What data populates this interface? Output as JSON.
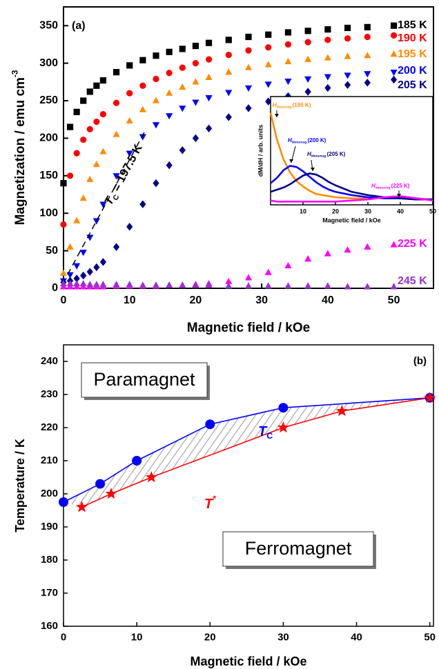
{
  "chart_data": [
    {
      "type": "scatter",
      "panel": "(a)",
      "x_label": "Magnetic field / kOe",
      "y_label": {
        "text": "Magnetization / emu cm",
        "superscript": "-3"
      },
      "xlim": [
        0,
        56
      ],
      "ylim": [
        0,
        375
      ],
      "xticks": [
        0,
        10,
        20,
        30,
        40,
        50
      ],
      "yticks": [
        0,
        50,
        100,
        150,
        200,
        250,
        300,
        350
      ],
      "x": [
        0,
        1,
        2,
        3,
        4,
        5,
        6,
        8,
        10,
        12,
        14,
        16,
        18,
        20,
        22,
        25,
        28,
        31,
        34,
        37,
        40,
        43,
        46,
        50
      ],
      "series": [
        {
          "name": "185 K",
          "color": "#000000",
          "marker": "square",
          "values": [
            140,
            215,
            235,
            250,
            262,
            270,
            277,
            288,
            297,
            304,
            310,
            315,
            319,
            323,
            327,
            331,
            335,
            338,
            341,
            343,
            345,
            347,
            348,
            350
          ]
        },
        {
          "name": "190 K",
          "color": "#ff0000",
          "marker": "circle",
          "values": [
            85,
            150,
            180,
            198,
            212,
            222,
            232,
            247,
            260,
            270,
            279,
            287,
            294,
            300,
            305,
            311,
            317,
            321,
            325,
            328,
            331,
            333,
            335,
            337
          ]
        },
        {
          "name": "195 K",
          "color": "#ff8c00",
          "marker": "triangle-up",
          "values": [
            20,
            55,
            90,
            120,
            145,
            165,
            182,
            205,
            223,
            238,
            250,
            260,
            268,
            275,
            281,
            288,
            294,
            298,
            302,
            305,
            307,
            309,
            310,
            312
          ]
        },
        {
          "name": "200 K",
          "color": "#0000ff",
          "marker": "triangle-down",
          "values": [
            10,
            18,
            30,
            48,
            68,
            90,
            112,
            150,
            180,
            202,
            218,
            230,
            240,
            248,
            254,
            261,
            267,
            272,
            276,
            279,
            282,
            284,
            286,
            288
          ]
        },
        {
          "name": "205 K",
          "color": "#00008b",
          "marker": "diamond",
          "values": [
            8,
            10,
            13,
            17,
            22,
            28,
            35,
            55,
            82,
            112,
            140,
            164,
            184,
            200,
            213,
            228,
            240,
            249,
            256,
            262,
            267,
            271,
            274,
            278
          ]
        },
        {
          "name": "225 K",
          "color": "#ff00ff",
          "marker": "triangle-up",
          "values": [
            2,
            2,
            2,
            2,
            2,
            2,
            2,
            3,
            3,
            3,
            3,
            4,
            4,
            5,
            6,
            9,
            14,
            21,
            30,
            39,
            46,
            51,
            55,
            58
          ]
        },
        {
          "name": "245 K",
          "color": "#9933cc",
          "marker": "triangle-up",
          "values": [
            6,
            6,
            6,
            6,
            5,
            5,
            5,
            5,
            5,
            4,
            4,
            4,
            4,
            4,
            4,
            3,
            3,
            3,
            3,
            3,
            3,
            2,
            2,
            2
          ]
        }
      ],
      "annotation": {
        "symbol": "T",
        "subscript": "C",
        "text": " = 197.5 K"
      }
    },
    {
      "type": "line",
      "x_label": "Magnetic field / kOe",
      "y_label": "dM/dH / arb. units",
      "xlim": [
        0,
        50
      ],
      "ylim": [
        0,
        1
      ],
      "xticks": [
        10,
        20,
        30,
        40,
        50
      ],
      "x": [
        0,
        2,
        4,
        6,
        8,
        10,
        12,
        14,
        16,
        18,
        20,
        25,
        30,
        35,
        40,
        45,
        50
      ],
      "series": [
        {
          "color": "#ff8c00",
          "values": [
            0.85,
            0.6,
            0.42,
            0.3,
            0.22,
            0.17,
            0.13,
            0.1,
            0.09,
            0.08,
            0.07,
            0.06,
            0.06,
            0.07,
            0.07,
            0.06,
            0.05
          ]
        },
        {
          "color": "#0000ff",
          "values": [
            0.2,
            0.25,
            0.32,
            0.36,
            0.35,
            0.31,
            0.26,
            0.21,
            0.17,
            0.14,
            0.12,
            0.09,
            0.07,
            0.06,
            0.06,
            0.05,
            0.05
          ]
        },
        {
          "color": "#00008b",
          "values": [
            0.12,
            0.14,
            0.16,
            0.19,
            0.23,
            0.27,
            0.29,
            0.28,
            0.25,
            0.21,
            0.18,
            0.12,
            0.09,
            0.07,
            0.06,
            0.05,
            0.05
          ]
        },
        {
          "color": "#ff00ff",
          "values": [
            0.04,
            0.03,
            0.03,
            0.03,
            0.03,
            0.03,
            0.03,
            0.03,
            0.03,
            0.03,
            0.03,
            0.04,
            0.05,
            0.07,
            0.08,
            0.06,
            0.04
          ]
        }
      ],
      "annotations": [
        {
          "symbol": "H",
          "subscript": "Metamag.",
          "text": "(195 K)"
        },
        {
          "symbol": "H",
          "subscript": "Metamag.",
          "text": "(200 K)"
        },
        {
          "symbol": "H",
          "subscript": "Metamag.",
          "text": "(205 K)"
        },
        {
          "symbol": "H",
          "subscript": "Metamag.",
          "text": "(225 K)"
        }
      ]
    },
    {
      "type": "line",
      "panel": "(b)",
      "x_label": "Magnetic field / kOe",
      "y_label": "Temperature / K",
      "xlim": [
        0,
        50.5
      ],
      "ylim": [
        160,
        245
      ],
      "xticks": [
        0,
        10,
        20,
        30,
        40,
        50
      ],
      "yticks": [
        160,
        170,
        180,
        190,
        200,
        210,
        220,
        230,
        240
      ],
      "series": [
        {
          "label": {
            "symbol": "T",
            "subscript": "C"
          },
          "color": "#0000ff",
          "marker": "circle",
          "x": [
            0,
            5,
            10,
            20,
            30,
            50
          ],
          "values": [
            197.5,
            203,
            210,
            221,
            226,
            229
          ]
        },
        {
          "label": {
            "symbol": "T",
            "superscript": "*"
          },
          "color": "#ff0000",
          "marker": "star",
          "x": [
            2.5,
            6.5,
            12,
            30,
            38,
            50
          ],
          "values": [
            196,
            200,
            205,
            220,
            225,
            229
          ]
        }
      ],
      "regions": [
        "Paramagnet",
        "Ferromagnet"
      ]
    }
  ]
}
